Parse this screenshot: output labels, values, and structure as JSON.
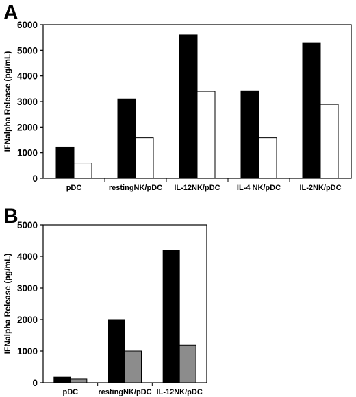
{
  "chart_data": [
    {
      "panel": "A",
      "type": "bar",
      "categories": [
        "pDC",
        "restingNK/pDC",
        "IL-12NK/pDC",
        "IL-4 NK/pDC",
        "IL-2NK/pDC"
      ],
      "series": [
        {
          "values": [
            1220,
            3100,
            5600,
            3420,
            5300
          ],
          "color": "#000000"
        },
        {
          "values": [
            600,
            1590,
            3400,
            1590,
            2890
          ],
          "color": "#ffffff"
        }
      ],
      "ylabel": "IFNalpha Release (pg/mL)",
      "ylim": [
        0,
        6000
      ],
      "yticks": [
        0,
        1000,
        2000,
        3000,
        4000,
        5000,
        6000
      ]
    },
    {
      "panel": "B",
      "type": "bar",
      "categories": [
        "pDC",
        "restingNK/pDC",
        "IL-12NK/pDC"
      ],
      "series": [
        {
          "values": [
            170,
            2000,
            4200
          ],
          "color": "#000000"
        },
        {
          "values": [
            110,
            1000,
            1190
          ],
          "color": "#8c8c8c"
        }
      ],
      "ylabel": "IFNalpha Release (pg/mL)",
      "ylim": [
        0,
        5000
      ],
      "yticks": [
        0,
        1000,
        2000,
        3000,
        4000,
        5000
      ]
    }
  ]
}
